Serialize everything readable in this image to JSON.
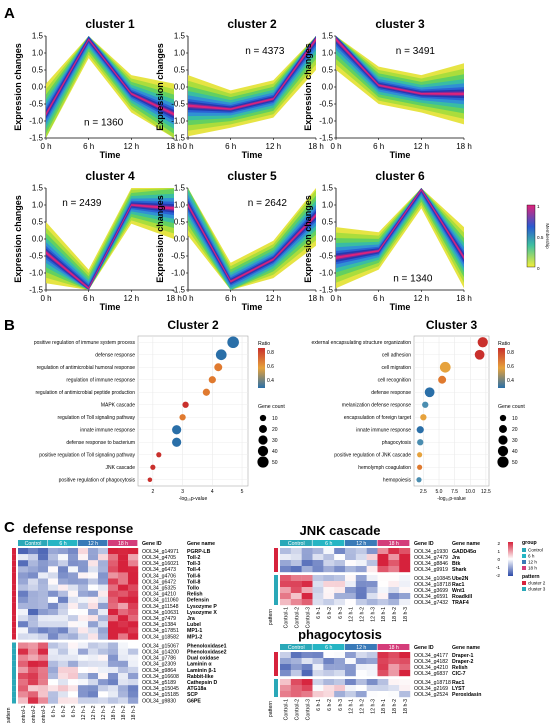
{
  "panels": {
    "a": "A",
    "b": "B",
    "c": "C"
  },
  "panel_a": {
    "ylabel": "Expression changes",
    "xlabel": "Time",
    "yticks": [
      "1.5",
      "1.0",
      "0.5",
      "0.0",
      "-0.5",
      "-1.0",
      "-1.5"
    ],
    "xticks": [
      "0 h",
      "6 h",
      "12 h",
      "18 h"
    ],
    "clusters": [
      {
        "title": "cluster 1",
        "n": "n = 1360",
        "profile": [
          -0.8,
          1.4,
          -0.2,
          -0.8
        ]
      },
      {
        "title": "cluster 2",
        "n": "n = 4373",
        "profile": [
          -0.55,
          -0.65,
          -0.35,
          1.4
        ]
      },
      {
        "title": "cluster 3",
        "n": "n = 3491",
        "profile": [
          1.4,
          0.05,
          -0.2,
          -0.2
        ]
      },
      {
        "title": "cluster 4",
        "n": "n = 2439",
        "profile": [
          -0.4,
          -1.45,
          1.0,
          0.9
        ]
      },
      {
        "title": "cluster 5",
        "n": "n = 2642",
        "profile": [
          1.0,
          -1.25,
          -0.6,
          0.7
        ]
      },
      {
        "title": "cluster 6",
        "n": "n = 1340",
        "profile": [
          -0.55,
          -0.35,
          1.45,
          -0.55
        ]
      }
    ],
    "membership_legend": {
      "title": "Membership",
      "ticks": [
        "1",
        "0.5",
        "0"
      ]
    }
  },
  "panel_b": {
    "xlabel": "-log₁₀p-value",
    "ratio_title": "Ratio",
    "count_title": "Gene count",
    "count_labels": [
      "10",
      "20",
      "30",
      "40",
      "50"
    ],
    "charts": [
      {
        "title": "Cluster 2",
        "xticks": [
          "2",
          "3",
          "4",
          "5"
        ],
        "xlim": [
          1.5,
          5.2
        ],
        "ratio_ticks": [
          "0.8",
          "0.6",
          "0.4"
        ],
        "terms": [
          "positive regulation of immune system process",
          "defense response",
          "regulation of antimicrobial humoral response",
          "regulation of immune response",
          "regulation of antimicrobial peptide production",
          "MAPK cascade",
          "regulation of Toll signaling pathway",
          "innate immune response",
          "defense response to bacterium",
          "positive regulation of Toll signaling pathway",
          "JNK cascade",
          "positive regulation of phagocytosis"
        ],
        "x": [
          4.7,
          4.3,
          4.2,
          4.0,
          3.8,
          3.1,
          3.0,
          2.8,
          2.8,
          2.2,
          2.0,
          1.9
        ],
        "count": [
          55,
          45,
          20,
          15,
          15,
          10,
          10,
          30,
          30,
          5,
          5,
          3
        ],
        "ratio": [
          0.35,
          0.4,
          0.7,
          0.65,
          0.65,
          0.85,
          0.75,
          0.35,
          0.4,
          0.9,
          0.9,
          0.85
        ]
      },
      {
        "title": "Cluster 3",
        "xticks": [
          "2.5",
          "5.0",
          "7.5",
          "10.0",
          "12.5"
        ],
        "xlim": [
          1.0,
          13.0
        ],
        "ratio_ticks": [
          "0.8",
          "0.6",
          "0.4"
        ],
        "terms": [
          "external encapsulating structure organization",
          "cell adhesion",
          "cell migration",
          "cell recognition",
          "defense response",
          "melanization defense response",
          "encapsulation of foreign target",
          "innate immune response",
          "phagocytosis",
          "positive regulation of JNK cascade",
          "hemolymph coagulation",
          "hemopoiesis"
        ],
        "x": [
          12.0,
          11.5,
          6.0,
          5.5,
          3.5,
          2.8,
          2.5,
          2.0,
          2.0,
          1.9,
          1.9,
          1.8
        ],
        "count": [
          40,
          35,
          45,
          20,
          35,
          10,
          10,
          15,
          10,
          5,
          5,
          5
        ],
        "ratio": [
          0.85,
          0.8,
          0.55,
          0.75,
          0.4,
          0.5,
          0.6,
          0.4,
          0.45,
          0.6,
          0.7,
          0.5
        ]
      }
    ]
  },
  "panel_c": {
    "groups": [
      "Control",
      "6 h",
      "12 h",
      "18 h"
    ],
    "group_colors": [
      "#2aa8b8",
      "#26b5c4",
      "#3a7ab8",
      "#d43d7a"
    ],
    "samples": [
      "Control-1",
      "Control-2",
      "Control-3",
      "6 h-1",
      "6 h-2",
      "6 h-3",
      "12 h-1",
      "12 h-2",
      "12 h-3",
      "18 h-1",
      "18 h-2",
      "18 h-3"
    ],
    "gene_id_header": "Gene ID",
    "gene_name_header": "Gene name",
    "pattern_label": "pattern",
    "pattern_names": [
      "cluster 2",
      "cluster 3"
    ],
    "group_label": "group",
    "legend_groups": [
      "Control",
      "6 h",
      "12 h",
      "18 h"
    ],
    "legend_scale": [
      "2",
      "1",
      "0",
      "-1",
      "-2"
    ],
    "heatmaps": [
      {
        "title": "defense response",
        "genes": [
          {
            "id": "OOL34_g14971",
            "name": "PGRP-LB",
            "p": 2
          },
          {
            "id": "OOL34_g4705",
            "name": "Toll-2",
            "p": 2
          },
          {
            "id": "OOL34_g16021",
            "name": "Toll-3",
            "p": 2
          },
          {
            "id": "OOL34_g6473",
            "name": "Toll-4",
            "p": 2
          },
          {
            "id": "OOL34_g4706",
            "name": "Toll-6",
            "p": 2
          },
          {
            "id": "OOL34_g6472",
            "name": "Toll-8",
            "p": 2
          },
          {
            "id": "OOL34_g5325",
            "name": "Tollo",
            "p": 2
          },
          {
            "id": "OOL34_g4210",
            "name": "Relish",
            "p": 2
          },
          {
            "id": "OOL34_g11060",
            "name": "Defensin",
            "p": 2
          },
          {
            "id": "OOL34_g11548",
            "name": "Lysozyme P",
            "p": 2
          },
          {
            "id": "OOL34_g10631",
            "name": "Lysozyme X",
            "p": 2
          },
          {
            "id": "OOL34_g7479",
            "name": "Jra",
            "p": 2
          },
          {
            "id": "OOL34_g1384",
            "name": "Lubel",
            "p": 2
          },
          {
            "id": "OOL34_g17851",
            "name": "MP1-1",
            "p": 2
          },
          {
            "id": "OOL34_g18582",
            "name": "MP1-2",
            "p": 2
          },
          {
            "id": "OOL34_g15067",
            "name": "Phenoloxidase1",
            "p": 3
          },
          {
            "id": "OOL34_g14200",
            "name": "Phenoloxidase2",
            "p": 3
          },
          {
            "id": "OOL34_g7786",
            "name": "Dual oxidase",
            "p": 3
          },
          {
            "id": "OOL34_g2309",
            "name": "Laminin α",
            "p": 3
          },
          {
            "id": "OOL34_g9864",
            "name": "Laminin β-1",
            "p": 3
          },
          {
            "id": "OOL34_g16608",
            "name": "Rabbit-like",
            "p": 3
          },
          {
            "id": "OOL34_g5189",
            "name": "Cathepsin D",
            "p": 3
          },
          {
            "id": "OOL34_g15045",
            "name": "ATG18a",
            "p": 3
          },
          {
            "id": "OOL34_g15185",
            "name": "SCP",
            "p": 3
          },
          {
            "id": "OOL34_g9830",
            "name": "G6PE",
            "p": 3
          }
        ]
      },
      {
        "title": "JNK cascade",
        "genes": [
          {
            "id": "OOL34_g1930",
            "name": "GADD45α",
            "p": 2
          },
          {
            "id": "OOL34_g7479",
            "name": "Jra",
            "p": 2
          },
          {
            "id": "OOL34_g8846",
            "name": "Btk",
            "p": 2
          },
          {
            "id": "OOL34_g9919",
            "name": "Shark",
            "p": 2
          },
          {
            "id": "OOL34_g10845",
            "name": "Ube2N",
            "p": 3
          },
          {
            "id": "OOL34_g18718",
            "name": "Rac1",
            "p": 3
          },
          {
            "id": "OOL34_g3699",
            "name": "Wnt1",
            "p": 3
          },
          {
            "id": "OOL34_g6591",
            "name": "Roadkill",
            "p": 3
          },
          {
            "id": "OOL34_g7432",
            "name": "TRAF4",
            "p": 3
          }
        ]
      },
      {
        "title": "phagocytosis",
        "genes": [
          {
            "id": "OOL34_g4177",
            "name": "Draper-1",
            "p": 2
          },
          {
            "id": "OOL34_g4182",
            "name": "Draper-2",
            "p": 2
          },
          {
            "id": "OOL34_g4210",
            "name": "Relish",
            "p": 2
          },
          {
            "id": "OOL34_g6837",
            "name": "ClC-7",
            "p": 2
          },
          {
            "id": "OOL34_g18718",
            "name": "Rac1",
            "p": 3
          },
          {
            "id": "OOL34_g2169",
            "name": "LYST",
            "p": 3
          },
          {
            "id": "OOL34_g2524",
            "name": "Peroxidasin",
            "p": 3
          }
        ]
      }
    ]
  }
}
